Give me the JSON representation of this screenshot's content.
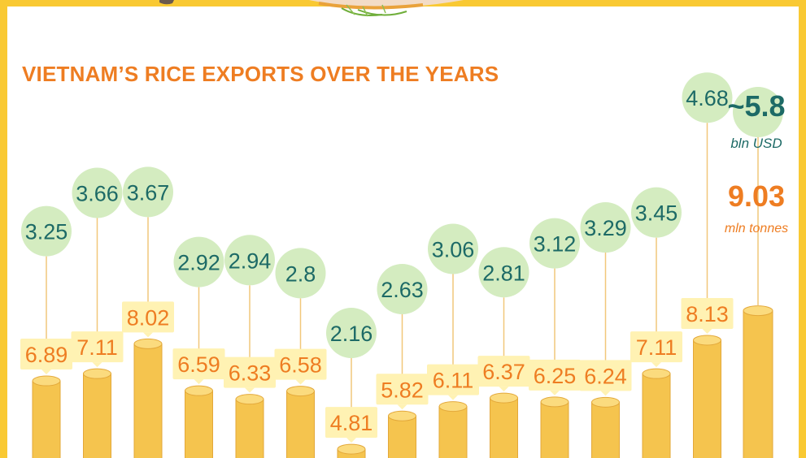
{
  "colors": {
    "title": "#ee7d22",
    "frame": "#f9c933",
    "bubble_fill": "#d4ecc0",
    "bubble_text": "#1d6a66",
    "tonnes_box": "#fff2b3",
    "tonnes_text": "#ee7d22",
    "bar_body": "#f5c44e",
    "bar_top": "#fbdb7e",
    "connector": "#f1c77a",
    "usd_text": "#1d6a66"
  },
  "chart_data": {
    "type": "bar",
    "title": "VIETNAM’S RICE EXPORTS OVER THE YEARS",
    "series": [
      {
        "name": "mln tonnes",
        "values": [
          6.89,
          7.11,
          8.02,
          6.59,
          6.33,
          6.58,
          4.81,
          5.82,
          6.11,
          6.37,
          6.25,
          6.24,
          7.11,
          8.13,
          9.03
        ]
      },
      {
        "name": "bln USD",
        "values": [
          3.25,
          3.66,
          3.67,
          2.92,
          2.94,
          2.8,
          2.16,
          2.63,
          3.06,
          2.81,
          3.12,
          3.29,
          3.45,
          4.68,
          5.8
        ]
      }
    ],
    "value_labels": {
      "tonnes": [
        "6.89",
        "7.11",
        "8.02",
        "6.59",
        "6.33",
        "6.58",
        "4.81",
        "5.82",
        "6.11",
        "6.37",
        "6.25",
        "6.24",
        "7.11",
        "8.13",
        "9.03"
      ],
      "usd": [
        "3.25",
        "3.66",
        "3.67",
        "2.92",
        "2.94",
        "2.8",
        "2.16",
        "2.63",
        "3.06",
        "2.81",
        "3.12",
        "3.29",
        "3.45",
        "4.68",
        "~5.8"
      ]
    },
    "unit_labels": {
      "usd": "bln USD",
      "tonnes": "mln tonnes"
    },
    "grid": false,
    "legend": "none"
  }
}
